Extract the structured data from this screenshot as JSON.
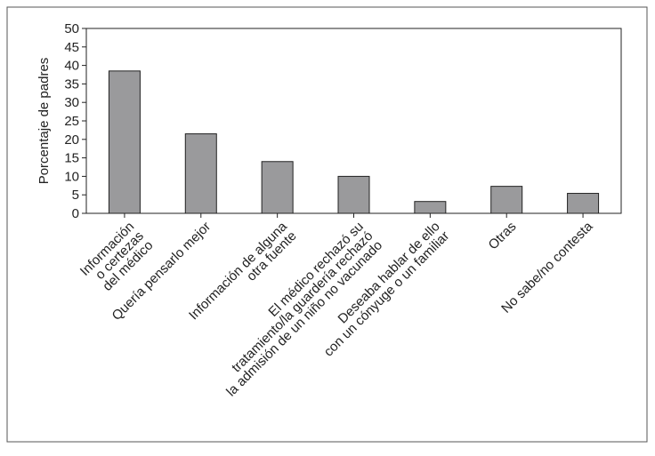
{
  "chart_data": {
    "type": "bar",
    "y_label": "Porcentaje de padres",
    "categories": [
      [
        "Información",
        "o certezas",
        "del médico"
      ],
      [
        "Quería pensarlo mejor"
      ],
      [
        "Información de alguna",
        "otra fuente"
      ],
      [
        "El médico rechazó su",
        "tratamiento/la guardería rechazó",
        "la admisión de un niño no vacunado"
      ],
      [
        "Deseaba hablar de ello",
        "con un cónyuge o un familiar"
      ],
      [
        "Otras"
      ],
      [
        "No sabe/no contesta"
      ]
    ],
    "values": [
      38.5,
      21.5,
      14,
      10,
      3.2,
      7.3,
      5.4
    ],
    "color": "#9a9a9c",
    "ylim": [
      0,
      50
    ],
    "yticks": [
      0,
      5,
      10,
      15,
      20,
      25,
      30,
      35,
      40,
      45,
      50
    ]
  }
}
